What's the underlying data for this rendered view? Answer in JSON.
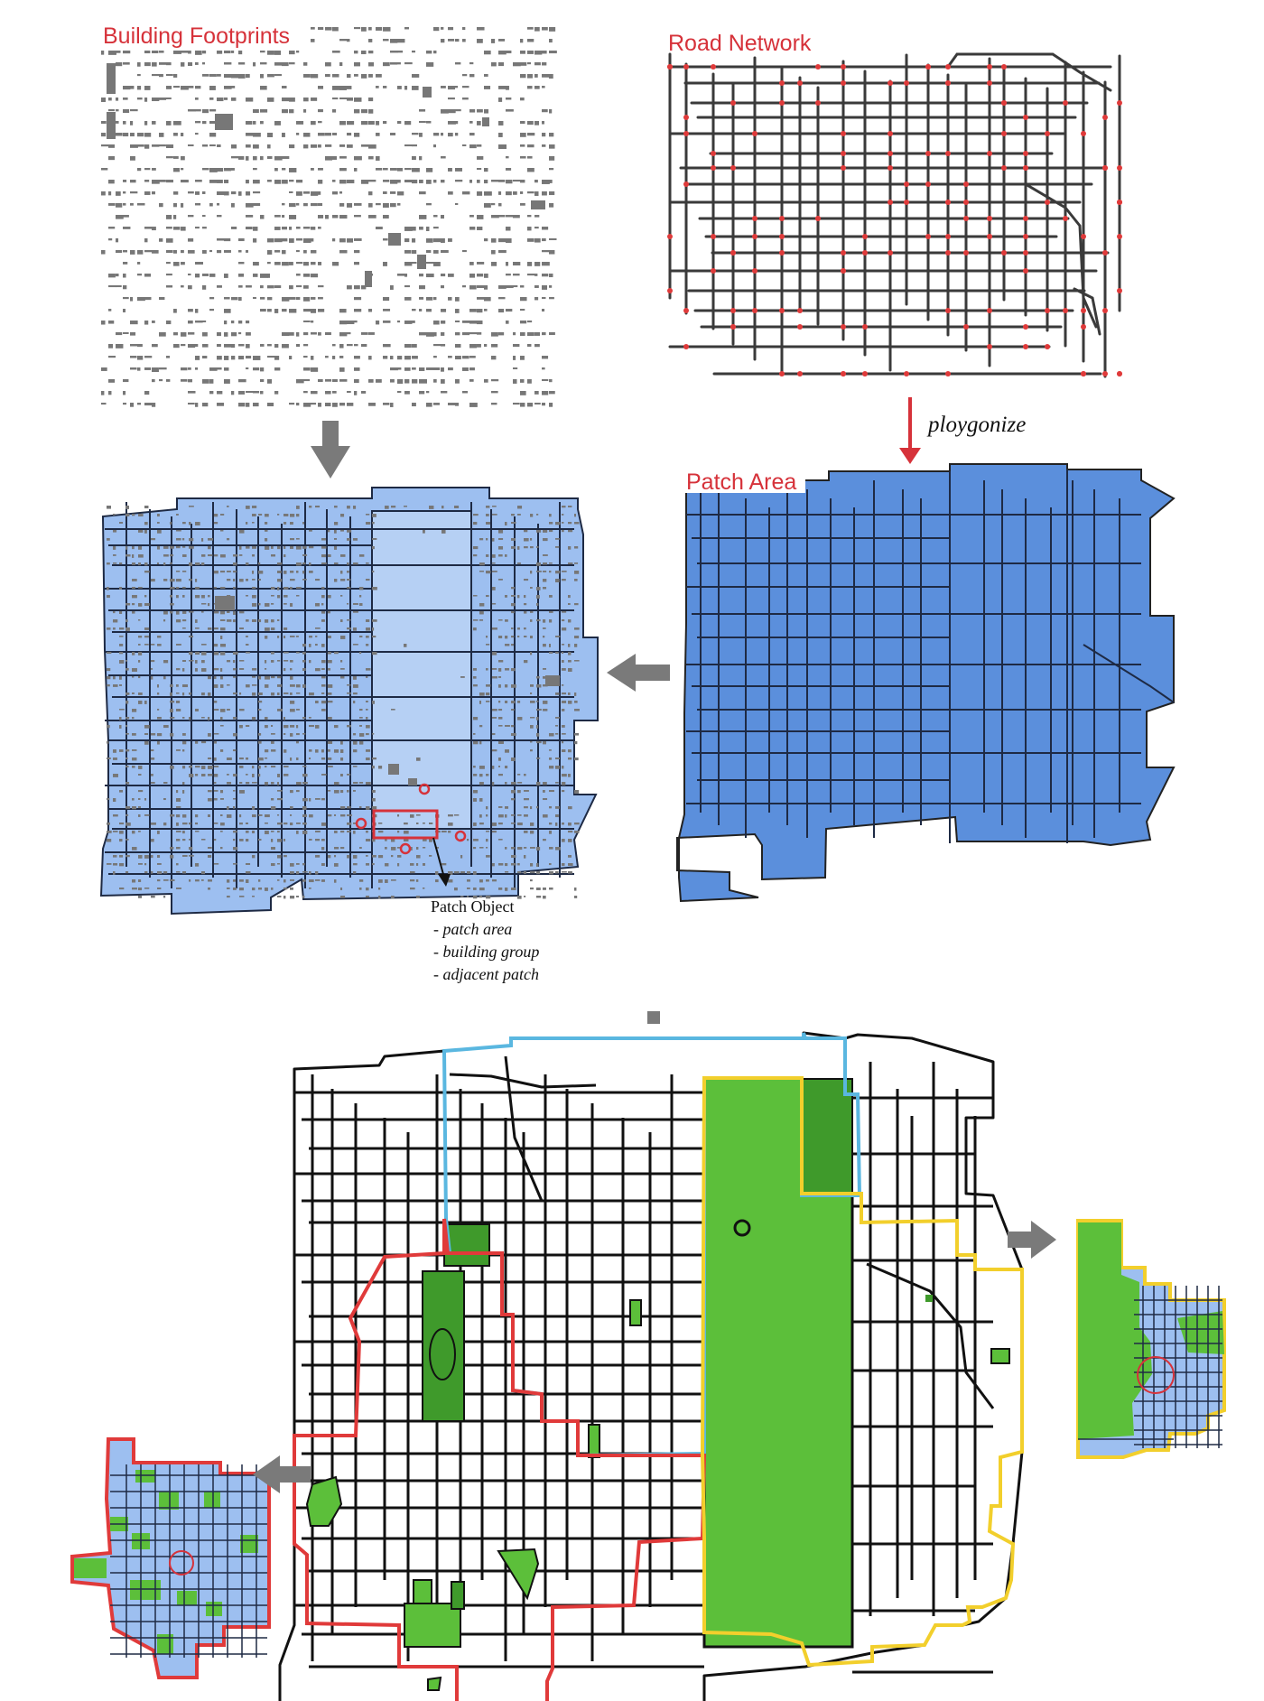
{
  "labels": {
    "building_footprints": "Building Footprints",
    "road_network": "Road Network",
    "ploygonize": "ploygonize",
    "patch_area": "Patch Area",
    "patch_object": "Patch Object",
    "patch_object_items": [
      "- patch area",
      "- building group",
      "- adjacent patch"
    ]
  },
  "colors": {
    "title_red": "#d6323a",
    "patch_blue": "#5b8fdc",
    "patch_light_blue": "#9dbff0",
    "building_gray": "#777777",
    "arrow_gray": "#7a7a7a",
    "green": "#5cbf3a",
    "dark_green": "#3f9a2b",
    "outline_red": "#e03a3a",
    "outline_cyan": "#5ab7e0",
    "outline_yellow": "#f2cf2c"
  },
  "icons": [
    "arrow-down-icon",
    "arrow-left-icon",
    "arrow-right-icon"
  ]
}
